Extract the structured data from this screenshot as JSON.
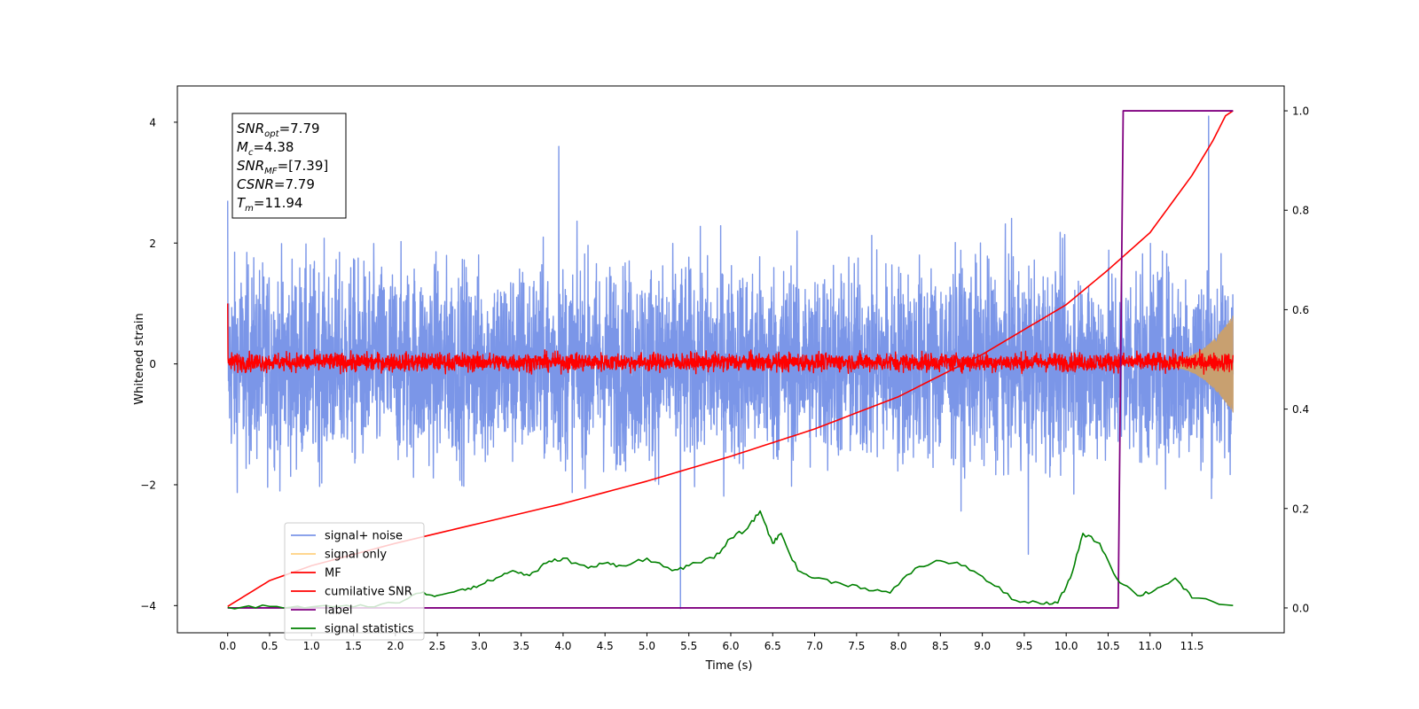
{
  "chart_data": {
    "type": "line",
    "title": "",
    "xlabel": "Time (s)",
    "ylabel": "Whitened strain",
    "xlim": [
      -0.6,
      12.6
    ],
    "ylim": [
      -4.45,
      4.6
    ],
    "y2lim": [
      -0.05,
      1.05
    ],
    "xticks": [
      "0.0",
      "0.5",
      "1.0",
      "1.5",
      "2.0",
      "2.5",
      "3.0",
      "3.5",
      "4.0",
      "4.5",
      "5.0",
      "5.5",
      "6.0",
      "6.5",
      "7.0",
      "7.5",
      "8.0",
      "8.5",
      "9.0",
      "9.5",
      "10.0",
      "10.5",
      "11.0",
      "11.5"
    ],
    "yticks": [
      -4,
      -2,
      0,
      2,
      4
    ],
    "y2ticks": [
      "0.0",
      "0.2",
      "0.4",
      "0.6",
      "0.8",
      "1.0"
    ],
    "grid": false,
    "legend_position": "lower-left",
    "legend": [
      {
        "label": "signal+ noise",
        "color": "#7b96e8"
      },
      {
        "label": "signal only",
        "color": "#ffd080"
      },
      {
        "label": "MF",
        "color": "#ff0000"
      },
      {
        "label": "cumilative SNR",
        "color": "#ff0000"
      },
      {
        "label": "label",
        "color": "#800080"
      },
      {
        "label": "signal statistics",
        "color": "#008000"
      }
    ],
    "annotation": {
      "lines": [
        {
          "base": "SNR",
          "sub": "opt",
          "value": "=7.79"
        },
        {
          "base": "M",
          "sub": "c",
          "value": "=4.38"
        },
        {
          "base": "SNR",
          "sub": "MF",
          "value": "=[7.39]"
        },
        {
          "base": "CSNR",
          "sub": "",
          "value": "=7.79"
        },
        {
          "base": "T",
          "sub": "m",
          "value": "=11.94"
        }
      ]
    },
    "series": [
      {
        "key": "noise",
        "axis": "left",
        "x_range": [
          0.0,
          11.99
        ],
        "amplitude_range": [
          -2.8,
          3.6
        ],
        "peaks": [
          [
            3.95,
            3.6
          ],
          [
            11.7,
            4.1
          ],
          [
            5.4,
            -4.05
          ],
          [
            9.55,
            -3.15
          ]
        ]
      },
      {
        "key": "signal",
        "axis": "left",
        "x_range": [
          11.2,
          11.99
        ],
        "envelope_end": 0.75
      },
      {
        "key": "mf",
        "axis": "left",
        "x_range": [
          0.0,
          11.99
        ],
        "amplitude_range": [
          -0.2,
          0.45
        ],
        "start_value": 1.0
      },
      {
        "key": "csnr",
        "axis": "right",
        "x": [
          0.0,
          0.5,
          1.0,
          2.0,
          3.0,
          4.0,
          5.0,
          6.0,
          7.0,
          8.0,
          9.0,
          10.0,
          10.5,
          11.0,
          11.5,
          11.75,
          11.9,
          11.99
        ],
        "y": [
          0.003,
          0.055,
          0.085,
          0.13,
          0.17,
          0.21,
          0.255,
          0.305,
          0.36,
          0.425,
          0.51,
          0.61,
          0.68,
          0.755,
          0.87,
          0.94,
          0.99,
          1.0
        ]
      },
      {
        "key": "label",
        "axis": "right",
        "x": [
          0.0,
          10.62,
          10.68,
          11.99
        ],
        "y": [
          0.0,
          0.0,
          1.0,
          1.0
        ]
      },
      {
        "key": "stats",
        "axis": "right",
        "x": [
          0.0,
          0.5,
          1.0,
          1.5,
          2.0,
          2.3,
          2.5,
          2.8,
          3.0,
          3.2,
          3.4,
          3.6,
          3.8,
          4.0,
          4.3,
          4.5,
          4.7,
          5.0,
          5.3,
          5.5,
          5.8,
          6.0,
          6.2,
          6.35,
          6.5,
          6.6,
          6.8,
          7.0,
          7.3,
          7.6,
          7.9,
          8.2,
          8.5,
          8.8,
          9.1,
          9.4,
          9.7,
          9.9,
          10.05,
          10.2,
          10.4,
          10.6,
          10.85,
          11.05,
          11.3,
          11.5,
          11.99
        ],
        "y": [
          0.001,
          0.003,
          0.002,
          0.002,
          0.01,
          0.03,
          0.025,
          0.038,
          0.045,
          0.06,
          0.075,
          0.065,
          0.09,
          0.1,
          0.08,
          0.09,
          0.085,
          0.1,
          0.075,
          0.085,
          0.1,
          0.14,
          0.16,
          0.195,
          0.13,
          0.15,
          0.075,
          0.06,
          0.05,
          0.04,
          0.03,
          0.08,
          0.095,
          0.085,
          0.05,
          0.015,
          0.008,
          0.01,
          0.06,
          0.15,
          0.13,
          0.06,
          0.025,
          0.035,
          0.06,
          0.02,
          0.005
        ]
      }
    ]
  }
}
